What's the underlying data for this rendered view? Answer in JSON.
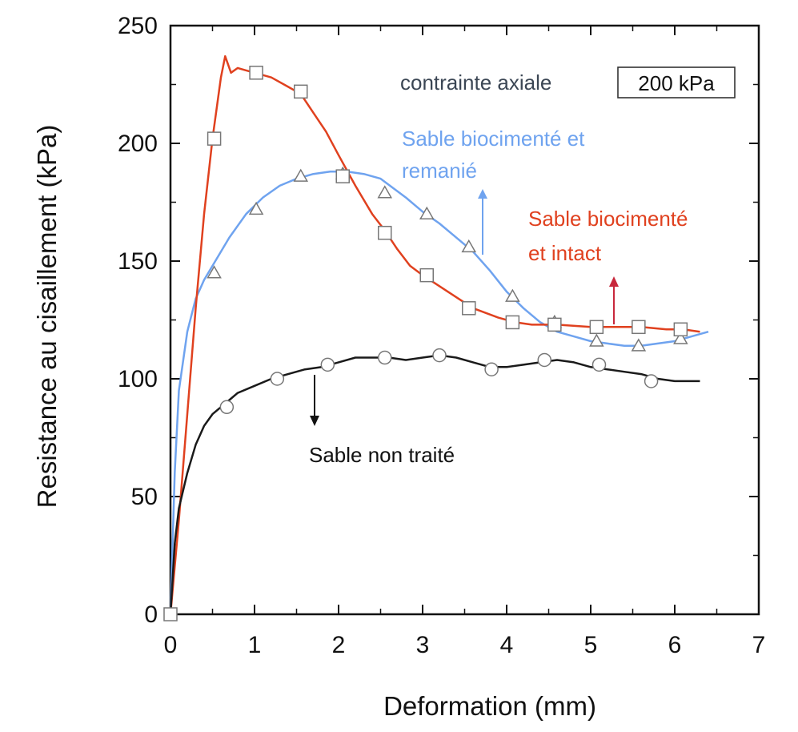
{
  "chart_data": {
    "type": "line",
    "title": "",
    "xlabel": "Deformation (mm)",
    "ylabel": "Resistance au cisaillement (kPa)",
    "xlim": [
      0,
      7
    ],
    "ylim": [
      0,
      250
    ],
    "xticks": [
      0,
      1,
      2,
      3,
      4,
      5,
      6,
      7
    ],
    "yticks": [
      0,
      50,
      100,
      150,
      200,
      250
    ],
    "xtick_labels": [
      "0",
      "1",
      "2",
      "3",
      "4",
      "5",
      "6",
      "7"
    ],
    "ytick_labels": [
      "0",
      "50",
      "100",
      "150",
      "200",
      "250"
    ],
    "grid": false,
    "series": [
      {
        "name": "Sable biocimenté et intact",
        "color": "#e0411f",
        "marker": "square",
        "x": [
          0,
          0.1,
          0.2,
          0.3,
          0.4,
          0.5,
          0.6,
          0.65,
          0.72,
          0.8,
          0.9,
          1.0,
          1.2,
          1.4,
          1.55,
          1.7,
          1.85,
          2.0,
          2.2,
          2.4,
          2.55,
          2.7,
          2.85,
          3.0,
          3.3,
          3.6,
          3.9,
          4.1,
          4.3,
          4.6,
          5.0,
          5.3,
          5.6,
          5.9,
          6.1,
          6.3
        ],
        "y": [
          0,
          40,
          85,
          130,
          170,
          202,
          228,
          237,
          230,
          232,
          231,
          230,
          228,
          224,
          221,
          213,
          205,
          195,
          182,
          170,
          163,
          155,
          148,
          144,
          137,
          130,
          126,
          124,
          123,
          123,
          122,
          122,
          122,
          121,
          121,
          120
        ],
        "markers": {
          "x": [
            0,
            0.52,
            1.02,
            1.55,
            2.05,
            2.55,
            3.05,
            3.55,
            4.07,
            4.57,
            5.07,
            5.57,
            6.07
          ],
          "y": [
            0,
            202,
            230,
            222,
            186,
            162,
            144,
            130,
            124,
            123,
            122,
            122,
            121
          ]
        }
      },
      {
        "name": "Sable biocimenté et remanié",
        "color": "#6fa3ef",
        "marker": "triangle",
        "x": [
          0,
          0.05,
          0.1,
          0.2,
          0.3,
          0.4,
          0.5,
          0.7,
          0.9,
          1.1,
          1.3,
          1.5,
          1.7,
          1.9,
          2.1,
          2.3,
          2.5,
          2.8,
          3.0,
          3.2,
          3.4,
          3.6,
          3.8,
          4.0,
          4.2,
          4.4,
          4.6,
          4.8,
          5.0,
          5.2,
          5.4,
          5.6,
          5.8,
          6.0,
          6.2,
          6.4
        ],
        "y": [
          0,
          60,
          95,
          120,
          134,
          142,
          148,
          160,
          170,
          177,
          182,
          185,
          187,
          188,
          188,
          187,
          185,
          177,
          171,
          166,
          160,
          154,
          146,
          137,
          130,
          124,
          120,
          118,
          116,
          115,
          114,
          114,
          115,
          116,
          118,
          120
        ],
        "markers": {
          "x": [
            0.52,
            1.02,
            1.55,
            2.05,
            2.55,
            3.05,
            3.55,
            4.07,
            4.57,
            5.07,
            5.57,
            6.07
          ],
          "y": [
            145,
            172,
            186,
            187,
            179,
            170,
            156,
            135,
            124,
            116,
            114,
            117
          ]
        }
      },
      {
        "name": "Sable non traité",
        "color": "#1a1a1a",
        "marker": "circle",
        "x": [
          0,
          0.05,
          0.1,
          0.2,
          0.3,
          0.4,
          0.5,
          0.6,
          0.7,
          0.8,
          1.0,
          1.2,
          1.4,
          1.6,
          1.8,
          2.0,
          2.2,
          2.4,
          2.6,
          2.8,
          3.0,
          3.2,
          3.4,
          3.6,
          3.8,
          4.0,
          4.2,
          4.4,
          4.6,
          4.8,
          5.0,
          5.2,
          5.4,
          5.6,
          5.8,
          6.0,
          6.2,
          6.3
        ],
        "y": [
          0,
          30,
          45,
          60,
          72,
          80,
          85,
          88,
          91,
          94,
          97,
          100,
          102,
          104,
          105,
          107,
          109,
          109,
          109,
          108,
          109,
          110,
          109,
          107,
          105,
          105,
          106,
          107,
          108,
          107,
          105,
          104,
          103,
          102,
          100,
          99,
          99,
          99
        ],
        "markers": {
          "x": [
            0.67,
            1.27,
            1.87,
            2.55,
            3.2,
            3.82,
            4.45,
            5.1,
            5.72
          ],
          "y": [
            88,
            100,
            106,
            109,
            110,
            104,
            108,
            106,
            99
          ]
        }
      }
    ],
    "annotations": [
      {
        "text": "contrainte axiale",
        "color": "#3b4654"
      },
      {
        "text": "200 kPa",
        "color": "#111111",
        "boxed": true
      },
      {
        "text": "Sable biocimenté et",
        "color": "#6fa3ef"
      },
      {
        "text": "remanié",
        "color": "#6fa3ef"
      },
      {
        "text": "Sable biocimenté",
        "color": "#e0411f"
      },
      {
        "text": "et intact",
        "color": "#e0411f"
      },
      {
        "text": "Sable non traité",
        "color": "#111111"
      }
    ]
  }
}
